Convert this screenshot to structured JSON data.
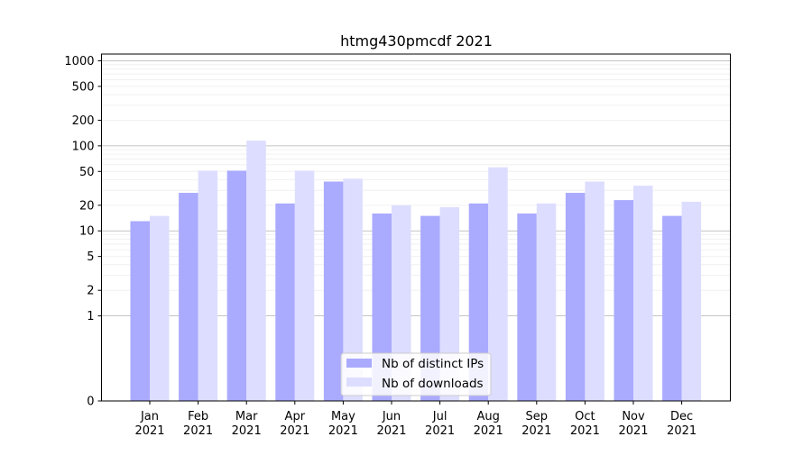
{
  "chart_data": {
    "type": "bar",
    "title": "htmg430pmcdf 2021",
    "xlabel": "",
    "ylabel": "",
    "categories": [
      "Jan\n2021",
      "Feb\n2021",
      "Mar\n2021",
      "Apr\n2021",
      "May\n2021",
      "Jun\n2021",
      "Jul\n2021",
      "Aug\n2021",
      "Sep\n2021",
      "Oct\n2021",
      "Nov\n2021",
      "Dec\n2021"
    ],
    "y_scale": "symlog",
    "yticks": [
      0,
      1,
      2,
      5,
      10,
      20,
      50,
      100,
      200,
      500,
      1000
    ],
    "ylim": [
      0,
      1200
    ],
    "grid": true,
    "legend_position": "bottom-center",
    "series": [
      {
        "name": "Nb of distinct IPs",
        "color": "#aaaaff",
        "values": [
          13,
          28,
          51,
          21,
          38,
          16,
          15,
          21,
          16,
          28,
          23,
          15
        ]
      },
      {
        "name": "Nb of downloads",
        "color": "#ddddff",
        "values": [
          15,
          51,
          115,
          51,
          41,
          20,
          19,
          56,
          21,
          38,
          34,
          22
        ]
      }
    ]
  }
}
